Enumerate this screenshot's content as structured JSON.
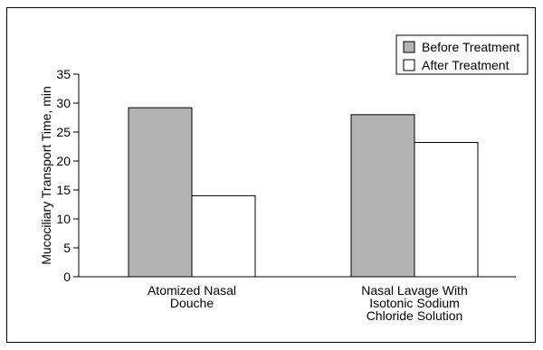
{
  "chart_data": {
    "type": "bar",
    "title": "",
    "xlabel": "",
    "ylabel": "Mucociliary Transport Time, min",
    "ylim": [
      0,
      35
    ],
    "yticks": [
      0,
      5,
      10,
      15,
      20,
      25,
      30,
      35
    ],
    "categories": [
      [
        "Atomized Nasal",
        "Douche"
      ],
      [
        "Nasal Lavage With",
        "Isotonic Sodium",
        "Chloride Solution"
      ]
    ],
    "series": [
      {
        "name": "Before Treatment",
        "color": "#b3b3b3",
        "values": [
          29.2,
          28.0
        ]
      },
      {
        "name": "After Treatment",
        "color": "#ffffff",
        "values": [
          14.0,
          23.2
        ]
      }
    ],
    "legend_position": "top-right",
    "grid": false
  }
}
